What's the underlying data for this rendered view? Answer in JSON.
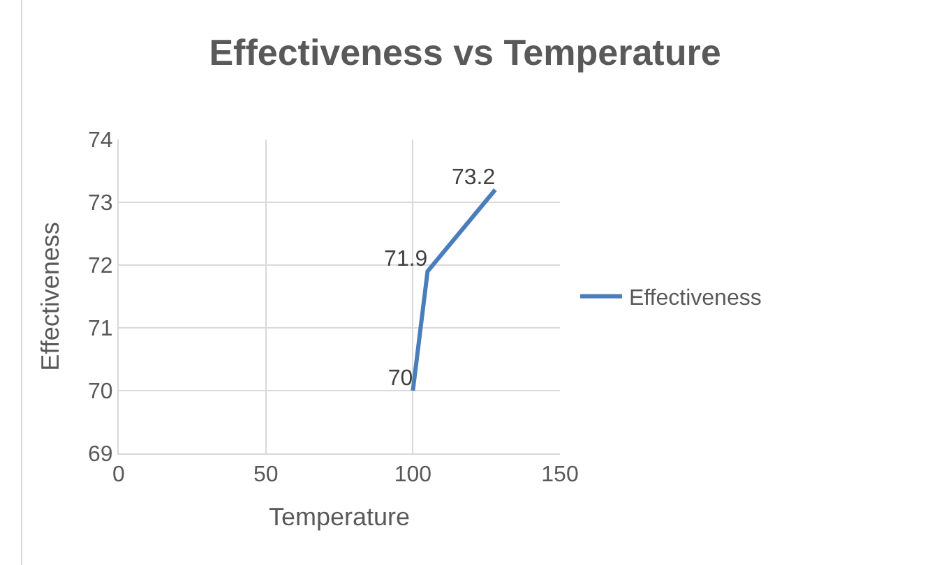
{
  "chart_data": {
    "type": "line",
    "title": "Effectiveness vs Temperature",
    "xlabel": "Temperature",
    "ylabel": "Effectiveness",
    "x": [
      100,
      105,
      128
    ],
    "series": [
      {
        "name": "Effectiveness",
        "color": "#4a7ebb",
        "values": [
          70,
          71.9,
          73.2
        ]
      }
    ],
    "xlim": [
      0,
      150
    ],
    "xticks": [
      0,
      50,
      100,
      150
    ],
    "ylim": [
      69,
      74
    ],
    "yticks": [
      69,
      70,
      71,
      72,
      73,
      74
    ],
    "grid": true,
    "legend": "right",
    "marker": "none",
    "line_style": "solid",
    "data_labels": true
  }
}
